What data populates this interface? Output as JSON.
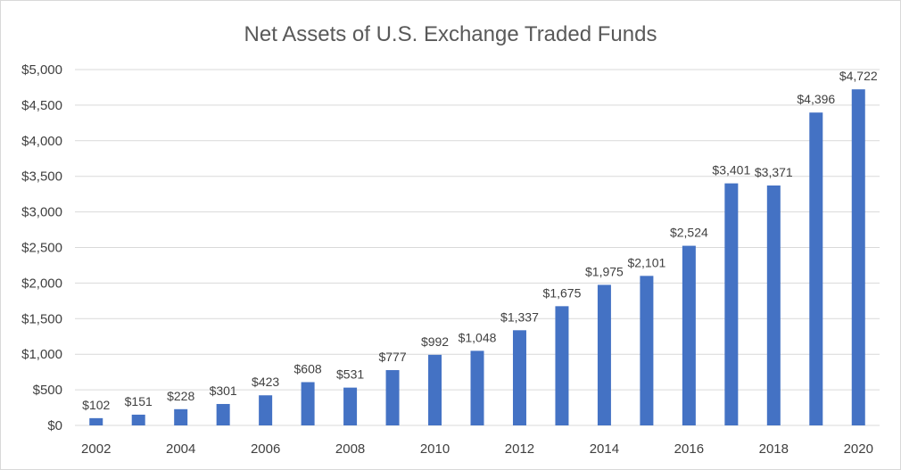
{
  "chart_data": {
    "type": "bar",
    "title": "Net Assets of U.S. Exchange Traded Funds",
    "xlabel": "",
    "ylabel": "",
    "categories": [
      "2002",
      "2003",
      "2004",
      "2005",
      "2006",
      "2007",
      "2008",
      "2009",
      "2010",
      "2011",
      "2012",
      "2013",
      "2014",
      "2015",
      "2016",
      "2017",
      "2018",
      "2019",
      "2020"
    ],
    "shown_x_ticks": [
      "2002",
      "2004",
      "2006",
      "2008",
      "2010",
      "2012",
      "2014",
      "2016",
      "2018",
      "2020"
    ],
    "values": [
      102,
      151,
      228,
      301,
      423,
      608,
      531,
      777,
      992,
      1048,
      1337,
      1675,
      1975,
      2101,
      2524,
      3401,
      3371,
      4396,
      4722
    ],
    "data_labels": [
      "$102",
      "$151",
      "$228",
      "$301",
      "$423",
      "$608",
      "$531",
      "$777",
      "$992",
      "$1,048",
      "$1,337",
      "$1,675",
      "$1,975",
      "$2,101",
      "$2,524",
      "$3,401",
      "$3,371",
      "$4,396",
      "$4,722"
    ],
    "y_ticks": [
      0,
      500,
      1000,
      1500,
      2000,
      2500,
      3000,
      3500,
      4000,
      4500,
      5000
    ],
    "y_tick_labels": [
      "$0",
      "$500",
      "$1,000",
      "$1,500",
      "$2,000",
      "$2,500",
      "$3,000",
      "$3,500",
      "$4,000",
      "$4,500",
      "$5,000"
    ],
    "ylim": [
      0,
      5000
    ],
    "grid": true,
    "legend": "none",
    "colors": {
      "bar": "#4472C4",
      "grid": "#d9d9d9",
      "text": "#404040",
      "title": "#595959"
    }
  }
}
